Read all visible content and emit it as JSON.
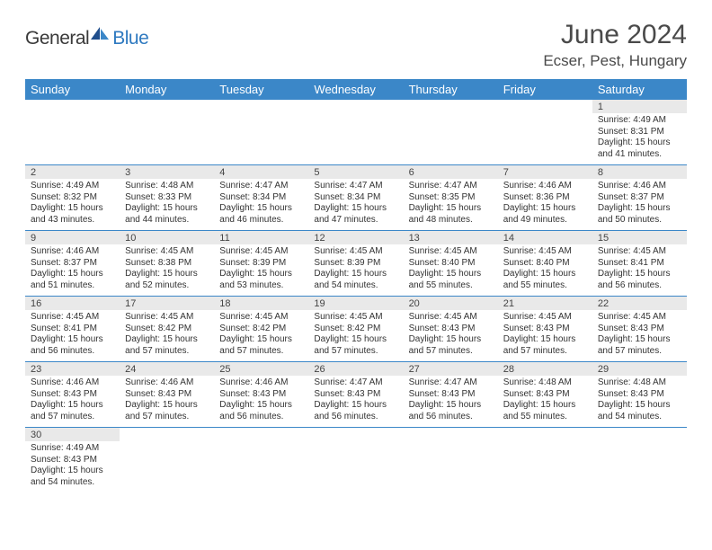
{
  "logo": {
    "text_general": "General",
    "text_blue": "Blue"
  },
  "title": "June 2024",
  "location": "Ecser, Pest, Hungary",
  "day_headers": [
    "Sunday",
    "Monday",
    "Tuesday",
    "Wednesday",
    "Thursday",
    "Friday",
    "Saturday"
  ],
  "colors": {
    "header_bg": "#3b87c8",
    "header_text": "#ffffff",
    "daynum_bg": "#e9e9e9",
    "divider": "#3b87c8",
    "text": "#333333",
    "title_text": "#4a4a4a",
    "logo_gray": "#3a3a3a",
    "logo_blue": "#2f7ac0"
  },
  "typography": {
    "title_fontsize": 30,
    "location_fontsize": 17,
    "header_fontsize": 13,
    "daynum_fontsize": 11,
    "body_fontsize": 10
  },
  "weeks": [
    [
      {
        "empty": true
      },
      {
        "empty": true
      },
      {
        "empty": true
      },
      {
        "empty": true
      },
      {
        "empty": true
      },
      {
        "empty": true
      },
      {
        "day": "1",
        "sunrise": "Sunrise: 4:49 AM",
        "sunset": "Sunset: 8:31 PM",
        "daylight": "Daylight: 15 hours and 41 minutes."
      }
    ],
    [
      {
        "day": "2",
        "sunrise": "Sunrise: 4:49 AM",
        "sunset": "Sunset: 8:32 PM",
        "daylight": "Daylight: 15 hours and 43 minutes."
      },
      {
        "day": "3",
        "sunrise": "Sunrise: 4:48 AM",
        "sunset": "Sunset: 8:33 PM",
        "daylight": "Daylight: 15 hours and 44 minutes."
      },
      {
        "day": "4",
        "sunrise": "Sunrise: 4:47 AM",
        "sunset": "Sunset: 8:34 PM",
        "daylight": "Daylight: 15 hours and 46 minutes."
      },
      {
        "day": "5",
        "sunrise": "Sunrise: 4:47 AM",
        "sunset": "Sunset: 8:34 PM",
        "daylight": "Daylight: 15 hours and 47 minutes."
      },
      {
        "day": "6",
        "sunrise": "Sunrise: 4:47 AM",
        "sunset": "Sunset: 8:35 PM",
        "daylight": "Daylight: 15 hours and 48 minutes."
      },
      {
        "day": "7",
        "sunrise": "Sunrise: 4:46 AM",
        "sunset": "Sunset: 8:36 PM",
        "daylight": "Daylight: 15 hours and 49 minutes."
      },
      {
        "day": "8",
        "sunrise": "Sunrise: 4:46 AM",
        "sunset": "Sunset: 8:37 PM",
        "daylight": "Daylight: 15 hours and 50 minutes."
      }
    ],
    [
      {
        "day": "9",
        "sunrise": "Sunrise: 4:46 AM",
        "sunset": "Sunset: 8:37 PM",
        "daylight": "Daylight: 15 hours and 51 minutes."
      },
      {
        "day": "10",
        "sunrise": "Sunrise: 4:45 AM",
        "sunset": "Sunset: 8:38 PM",
        "daylight": "Daylight: 15 hours and 52 minutes."
      },
      {
        "day": "11",
        "sunrise": "Sunrise: 4:45 AM",
        "sunset": "Sunset: 8:39 PM",
        "daylight": "Daylight: 15 hours and 53 minutes."
      },
      {
        "day": "12",
        "sunrise": "Sunrise: 4:45 AM",
        "sunset": "Sunset: 8:39 PM",
        "daylight": "Daylight: 15 hours and 54 minutes."
      },
      {
        "day": "13",
        "sunrise": "Sunrise: 4:45 AM",
        "sunset": "Sunset: 8:40 PM",
        "daylight": "Daylight: 15 hours and 55 minutes."
      },
      {
        "day": "14",
        "sunrise": "Sunrise: 4:45 AM",
        "sunset": "Sunset: 8:40 PM",
        "daylight": "Daylight: 15 hours and 55 minutes."
      },
      {
        "day": "15",
        "sunrise": "Sunrise: 4:45 AM",
        "sunset": "Sunset: 8:41 PM",
        "daylight": "Daylight: 15 hours and 56 minutes."
      }
    ],
    [
      {
        "day": "16",
        "sunrise": "Sunrise: 4:45 AM",
        "sunset": "Sunset: 8:41 PM",
        "daylight": "Daylight: 15 hours and 56 minutes."
      },
      {
        "day": "17",
        "sunrise": "Sunrise: 4:45 AM",
        "sunset": "Sunset: 8:42 PM",
        "daylight": "Daylight: 15 hours and 57 minutes."
      },
      {
        "day": "18",
        "sunrise": "Sunrise: 4:45 AM",
        "sunset": "Sunset: 8:42 PM",
        "daylight": "Daylight: 15 hours and 57 minutes."
      },
      {
        "day": "19",
        "sunrise": "Sunrise: 4:45 AM",
        "sunset": "Sunset: 8:42 PM",
        "daylight": "Daylight: 15 hours and 57 minutes."
      },
      {
        "day": "20",
        "sunrise": "Sunrise: 4:45 AM",
        "sunset": "Sunset: 8:43 PM",
        "daylight": "Daylight: 15 hours and 57 minutes."
      },
      {
        "day": "21",
        "sunrise": "Sunrise: 4:45 AM",
        "sunset": "Sunset: 8:43 PM",
        "daylight": "Daylight: 15 hours and 57 minutes."
      },
      {
        "day": "22",
        "sunrise": "Sunrise: 4:45 AM",
        "sunset": "Sunset: 8:43 PM",
        "daylight": "Daylight: 15 hours and 57 minutes."
      }
    ],
    [
      {
        "day": "23",
        "sunrise": "Sunrise: 4:46 AM",
        "sunset": "Sunset: 8:43 PM",
        "daylight": "Daylight: 15 hours and 57 minutes."
      },
      {
        "day": "24",
        "sunrise": "Sunrise: 4:46 AM",
        "sunset": "Sunset: 8:43 PM",
        "daylight": "Daylight: 15 hours and 57 minutes."
      },
      {
        "day": "25",
        "sunrise": "Sunrise: 4:46 AM",
        "sunset": "Sunset: 8:43 PM",
        "daylight": "Daylight: 15 hours and 56 minutes."
      },
      {
        "day": "26",
        "sunrise": "Sunrise: 4:47 AM",
        "sunset": "Sunset: 8:43 PM",
        "daylight": "Daylight: 15 hours and 56 minutes."
      },
      {
        "day": "27",
        "sunrise": "Sunrise: 4:47 AM",
        "sunset": "Sunset: 8:43 PM",
        "daylight": "Daylight: 15 hours and 56 minutes."
      },
      {
        "day": "28",
        "sunrise": "Sunrise: 4:48 AM",
        "sunset": "Sunset: 8:43 PM",
        "daylight": "Daylight: 15 hours and 55 minutes."
      },
      {
        "day": "29",
        "sunrise": "Sunrise: 4:48 AM",
        "sunset": "Sunset: 8:43 PM",
        "daylight": "Daylight: 15 hours and 54 minutes."
      }
    ],
    [
      {
        "day": "30",
        "sunrise": "Sunrise: 4:49 AM",
        "sunset": "Sunset: 8:43 PM",
        "daylight": "Daylight: 15 hours and 54 minutes."
      },
      {
        "empty": true
      },
      {
        "empty": true
      },
      {
        "empty": true
      },
      {
        "empty": true
      },
      {
        "empty": true
      },
      {
        "empty": true
      }
    ]
  ]
}
